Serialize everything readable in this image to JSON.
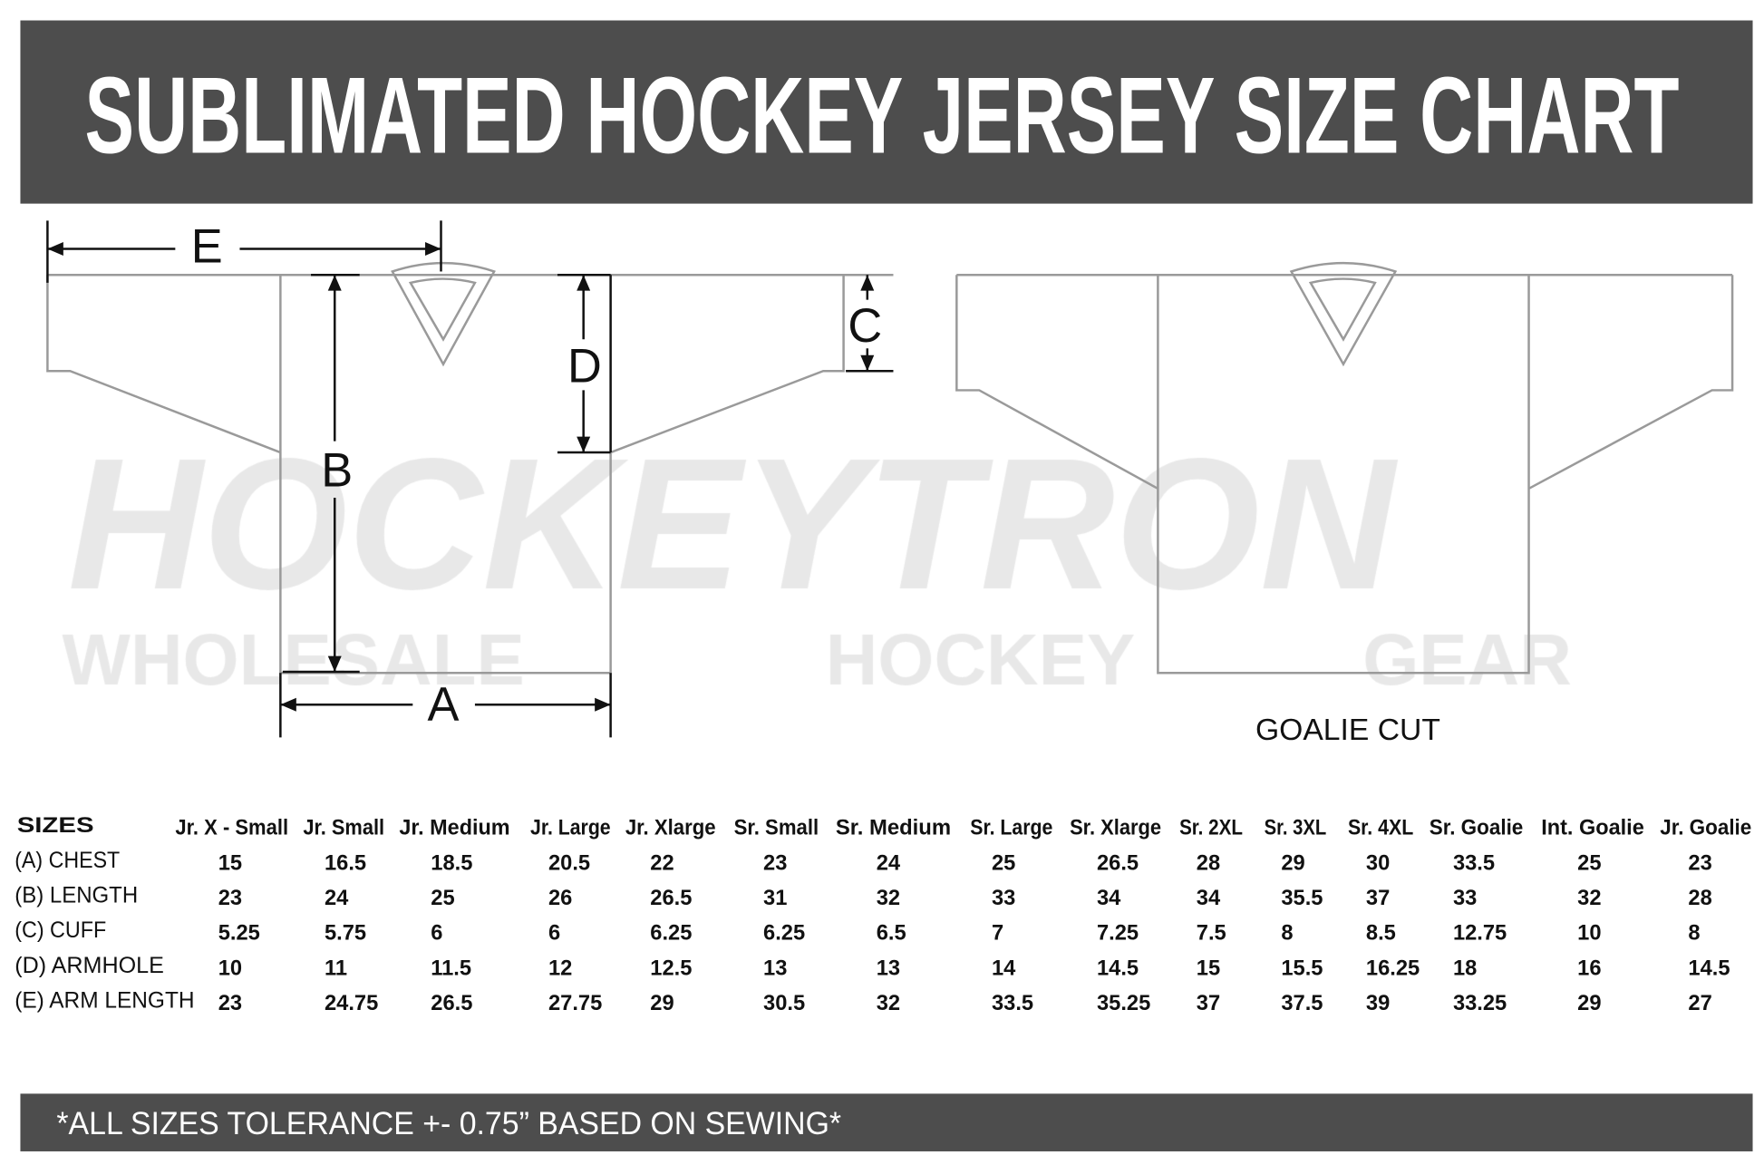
{
  "title": "SUBLIMATED HOCKEY JERSEY SIZE CHART",
  "watermark": {
    "logo": "HOCKEYTRON",
    "tagline": "WHOLESALE HOCKEY GEAR"
  },
  "diagram": {
    "labels": {
      "A": "A",
      "B": "B",
      "C": "C",
      "D": "D",
      "E": "E"
    },
    "goalie_caption": "GOALIE CUT"
  },
  "colors": {
    "header_bg": "#4d4d4d",
    "outline": "#9a9a9a",
    "watermark": "#e8e8e8"
  },
  "table": {
    "corner": "SIZES",
    "columns": [
      "Jr. X - Small",
      "Jr. Small",
      "Jr. Medium",
      "Jr. Large",
      "Jr. Xlarge",
      "Sr. Small",
      "Sr. Medium",
      "Sr. Large",
      "Sr. Xlarge",
      "Sr. 2XL",
      "Sr. 3XL",
      "Sr. 4XL",
      "Sr. Goalie",
      "Int. Goalie",
      "Jr. Goalie"
    ],
    "rows": [
      {
        "label": "(A) CHEST",
        "values": [
          "15",
          "16.5",
          "18.5",
          "20.5",
          "22",
          "23",
          "24",
          "25",
          "26.5",
          "28",
          "29",
          "30",
          "33.5",
          "25",
          "23"
        ]
      },
      {
        "label": "(B) LENGTH",
        "values": [
          "23",
          "24",
          "25",
          "26",
          "26.5",
          "31",
          "32",
          "33",
          "34",
          "34",
          "35.5",
          "37",
          "33",
          "32",
          "28"
        ]
      },
      {
        "label": "(C) CUFF",
        "values": [
          "5.25",
          "5.75",
          "6",
          "6",
          "6.25",
          "6.25",
          "6.5",
          "7",
          "7.25",
          "7.5",
          "8",
          "8.5",
          "12.75",
          "10",
          "8"
        ]
      },
      {
        "label": "(D) ARMHOLE",
        "values": [
          "10",
          "11",
          "11.5",
          "12",
          "12.5",
          "13",
          "13",
          "14",
          "14.5",
          "15",
          "15.5",
          "16.25",
          "18",
          "16",
          "14.5"
        ]
      },
      {
        "label": "(E) ARM LENGTH",
        "values": [
          "23",
          "24.75",
          "26.5",
          "27.75",
          "29",
          "30.5",
          "32",
          "33.5",
          "35.25",
          "37",
          "37.5",
          "39",
          "33.25",
          "29",
          "27"
        ]
      }
    ]
  },
  "footer": "*ALL SIZES TOLERANCE +- 0.75” BASED ON SEWING*"
}
